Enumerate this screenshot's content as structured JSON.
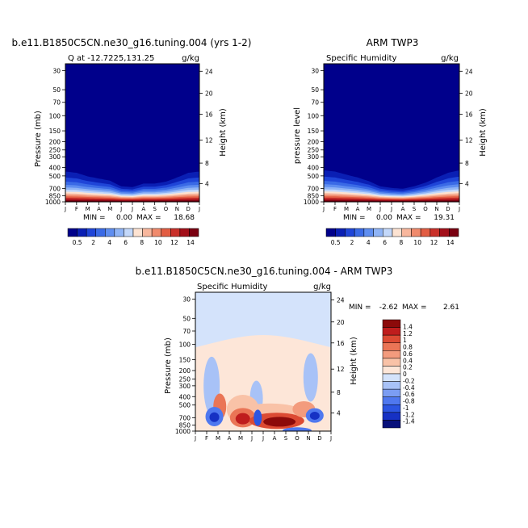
{
  "months": [
    "J",
    "F",
    "M",
    "A",
    "M",
    "J",
    "J",
    "A",
    "S",
    "O",
    "N",
    "D",
    "J"
  ],
  "pressure_ticks": [
    "30",
    "50",
    "70",
    "100",
    "150",
    "200",
    "250",
    "300",
    "400",
    "500",
    "700",
    "850",
    "1000"
  ],
  "height_ticks": [
    "24",
    "20",
    "16",
    "12",
    "8",
    "4"
  ],
  "colors": {
    "abs_scale": [
      "#00008b",
      "#0a1fb4",
      "#1f45d8",
      "#3a6ae6",
      "#5f8ef0",
      "#8fb4f6",
      "#c3d8fa",
      "#fde3d2",
      "#f8b79d",
      "#f08a6c",
      "#e25d43",
      "#c9302a",
      "#a3101a",
      "#7a0010"
    ],
    "diff_scale": [
      "#08117a",
      "#1631c4",
      "#2c55e2",
      "#4f78ef",
      "#7b9df3",
      "#a8c2f7",
      "#d4e3fb",
      "#fde6d8",
      "#f9c2a7",
      "#f39b7d",
      "#ea7556",
      "#dc4a33",
      "#bf1d1d",
      "#8c0a0a"
    ]
  },
  "chart_data": [
    {
      "type": "heatmap",
      "title": "b.e11.B1850C5CN.ne30_g16.tuning.004 (yrs 1-2)",
      "subtitle_left": "Q at -12.7225,131.25",
      "units": "g/kg",
      "ylabel": "Pressure (mb)",
      "ylabel_right": "Height (km)",
      "stats": {
        "min_label": "MIN =",
        "min": "0.00",
        "max_label": "MAX =",
        "max": "18.68"
      },
      "colorbar_labels": [
        "0.5",
        "2",
        "4",
        "6",
        "8",
        "10",
        "12",
        "14"
      ],
      "moist_top_mb_by_month": [
        280,
        300,
        360,
        400,
        440,
        560,
        580,
        500,
        500,
        460,
        380,
        300,
        280
      ]
    },
    {
      "type": "heatmap",
      "title": "ARM TWP3",
      "subtitle_left": "Specific Humidity",
      "units": "g/kg",
      "ylabel": "pressure level",
      "ylabel_right": "Height (km)",
      "stats": {
        "min_label": "MIN =",
        "min": "0.00",
        "max_label": "MAX =",
        "max": "19.31"
      },
      "colorbar_labels": [
        "0.5",
        "2",
        "4",
        "6",
        "8",
        "10",
        "12",
        "14"
      ],
      "moist_top_mb_by_month": [
        260,
        280,
        330,
        380,
        450,
        560,
        600,
        620,
        560,
        480,
        380,
        300,
        260
      ]
    },
    {
      "type": "heatmap",
      "title": "b.e11.B1850C5CN.ne30_g16.tuning.004 - ARM TWP3",
      "subtitle_left": "Specific Humidity",
      "units": "g/kg",
      "ylabel": "Pressure (mb)",
      "ylabel_right": "Height (km)",
      "stats": {
        "min_label": "MIN =",
        "min": "-2.62",
        "max_label": "MAX =",
        "max": "2.61"
      },
      "colorbar_labels": [
        "1.4",
        "1.2",
        "1",
        "0.8",
        "0.6",
        "0.4",
        "0.2",
        "0",
        "-0.2",
        "-0.4",
        "-0.6",
        "-0.8",
        "-1",
        "-1.2",
        "-1.4"
      ]
    }
  ]
}
